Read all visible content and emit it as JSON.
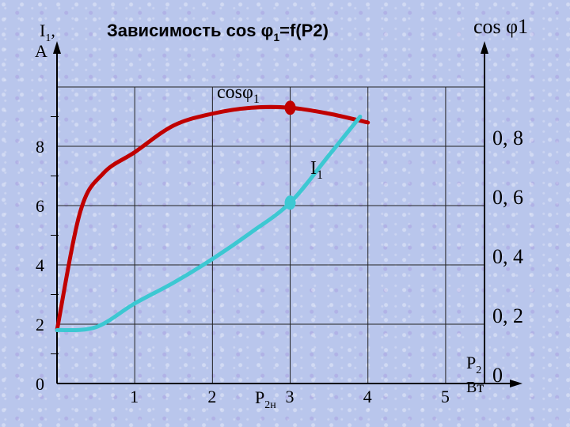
{
  "chart_data": {
    "type": "line",
    "title": "Зависимость cos φ",
    "title_sub": "1",
    "title_tail": "=f(P2)",
    "ylabel_left_main": "I",
    "ylabel_left_sub": "1",
    "ylabel_left_tail": ",",
    "ylabel_left_unit": "A",
    "ylabel_right": "cos φ1",
    "xlabel_main": "P",
    "xlabel_sub": "2",
    "xlabel_unit": "Вт",
    "x_marker_main": "P",
    "x_marker_sub": "2н",
    "x_ticks": [
      "1",
      "2",
      "3",
      "4",
      "5"
    ],
    "y_left_ticks": [
      "0",
      "2",
      "4",
      "6",
      "8"
    ],
    "y_right_ticks": [
      "0",
      "0, 2",
      "0, 4",
      "0, 6",
      "0, 8"
    ],
    "xlim": [
      0,
      5.5
    ],
    "ylim_left": [
      0,
      10
    ],
    "ylim_right": [
      0,
      1
    ],
    "grid": true,
    "series": [
      {
        "name": "cosφ",
        "name_sub": "1",
        "axis": "right",
        "color": "#c00000",
        "x": [
          0,
          0.3,
          0.6,
          1.0,
          1.5,
          2.0,
          2.5,
          3.0,
          3.5,
          4.0
        ],
        "y": [
          0.18,
          0.58,
          0.71,
          0.78,
          0.87,
          0.91,
          0.93,
          0.93,
          0.91,
          0.88
        ],
        "marker": {
          "x": 3.0,
          "y": 0.93
        }
      },
      {
        "name": "I",
        "name_sub": "1",
        "axis": "left",
        "color": "#3cc8d2",
        "x": [
          0,
          0.5,
          1.0,
          1.5,
          2.0,
          2.5,
          3.0,
          3.5,
          3.9
        ],
        "y": [
          1.8,
          1.9,
          2.7,
          3.4,
          4.2,
          5.1,
          6.1,
          7.7,
          9.0
        ],
        "marker": {
          "x": 3.0,
          "y": 6.1
        }
      }
    ]
  }
}
